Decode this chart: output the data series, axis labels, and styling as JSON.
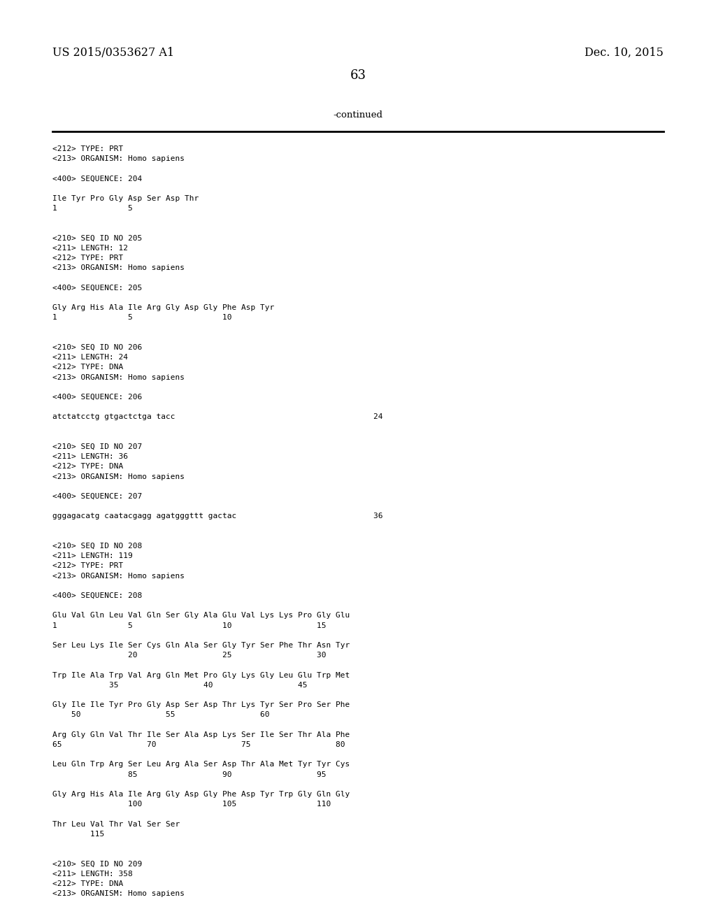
{
  "header_left": "US 2015/0353627 A1",
  "header_right": "Dec. 10, 2015",
  "page_number": "63",
  "continued_label": "-continued",
  "background_color": "#ffffff",
  "text_color": "#000000",
  "mono_size": 8.0,
  "header_size": 11.5,
  "page_num_size": 13.0,
  "continued_size": 9.5,
  "content": [
    "<212> TYPE: PRT",
    "<213> ORGANISM: Homo sapiens",
    "",
    "<400> SEQUENCE: 204",
    "",
    "Ile Tyr Pro Gly Asp Ser Asp Thr",
    "1               5",
    "",
    "",
    "<210> SEQ ID NO 205",
    "<211> LENGTH: 12",
    "<212> TYPE: PRT",
    "<213> ORGANISM: Homo sapiens",
    "",
    "<400> SEQUENCE: 205",
    "",
    "Gly Arg His Ala Ile Arg Gly Asp Gly Phe Asp Tyr",
    "1               5                   10",
    "",
    "",
    "<210> SEQ ID NO 206",
    "<211> LENGTH: 24",
    "<212> TYPE: DNA",
    "<213> ORGANISM: Homo sapiens",
    "",
    "<400> SEQUENCE: 206",
    "",
    "atctatcctg gtgactctga tacc                                          24",
    "",
    "",
    "<210> SEQ ID NO 207",
    "<211> LENGTH: 36",
    "<212> TYPE: DNA",
    "<213> ORGANISM: Homo sapiens",
    "",
    "<400> SEQUENCE: 207",
    "",
    "gggagacatg caatacgagg agatgggttt gactac                             36",
    "",
    "",
    "<210> SEQ ID NO 208",
    "<211> LENGTH: 119",
    "<212> TYPE: PRT",
    "<213> ORGANISM: Homo sapiens",
    "",
    "<400> SEQUENCE: 208",
    "",
    "Glu Val Gln Leu Val Gln Ser Gly Ala Glu Val Lys Lys Pro Gly Glu",
    "1               5                   10                  15",
    "",
    "Ser Leu Lys Ile Ser Cys Gln Ala Ser Gly Tyr Ser Phe Thr Asn Tyr",
    "                20                  25                  30",
    "",
    "Trp Ile Ala Trp Val Arg Gln Met Pro Gly Lys Gly Leu Glu Trp Met",
    "            35                  40                  45",
    "",
    "Gly Ile Ile Tyr Pro Gly Asp Ser Asp Thr Lys Tyr Ser Pro Ser Phe",
    "    50                  55                  60",
    "",
    "Arg Gly Gln Val Thr Ile Ser Ala Asp Lys Ser Ile Ser Thr Ala Phe",
    "65                  70                  75                  80",
    "",
    "Leu Gln Trp Arg Ser Leu Arg Ala Ser Asp Thr Ala Met Tyr Tyr Cys",
    "                85                  90                  95",
    "",
    "Gly Arg His Ala Ile Arg Gly Asp Gly Phe Asp Tyr Trp Gly Gln Gly",
    "                100                 105                 110",
    "",
    "Thr Leu Val Thr Val Ser Ser",
    "        115",
    "",
    "",
    "<210> SEQ ID NO 209",
    "<211> LENGTH: 358",
    "<212> TYPE: DNA",
    "<213> ORGANISM: Homo sapiens"
  ]
}
